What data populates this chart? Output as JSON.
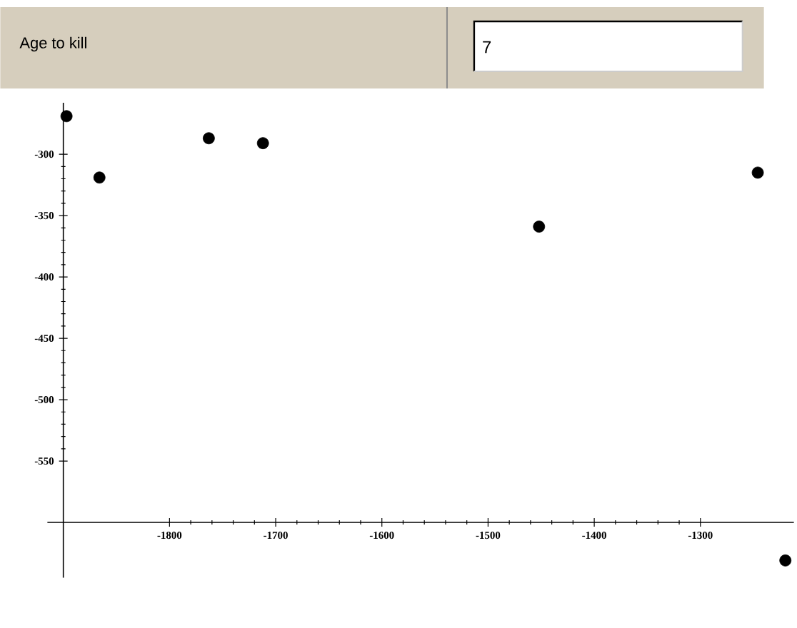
{
  "chart_data": {
    "type": "scatter",
    "annotations": [
      "Age to kill",
      "7"
    ],
    "x": [
      -1897,
      -1866,
      -1763,
      -1712,
      -1452,
      -1246,
      -1220
    ],
    "values": [
      -269,
      -319,
      -287,
      -291,
      -359,
      -315,
      -631
    ],
    "color": "#000000",
    "marker": "circle",
    "xlim": [
      -1915,
      -1212
    ],
    "ylim": [
      -645,
      -258
    ],
    "xticks": [
      -1800,
      -1700,
      -1600,
      -1500,
      -1400,
      -1300
    ],
    "yticks": [
      -550,
      -500,
      -450,
      -400,
      -350,
      -300
    ]
  }
}
